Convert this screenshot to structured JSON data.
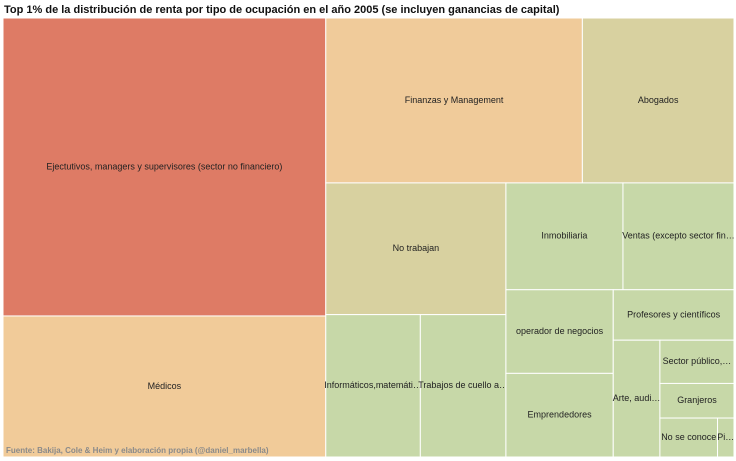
{
  "chart_data": {
    "type": "treemap",
    "title": "Top 1% de la distribución de renta por tipo de ocupación en el año 2005 (se incluyen ganancias de capital)",
    "source": "Fuente: Bakija, Cole & Heim y elaboración propia (@daniel_marbella)",
    "categories": [
      "Ejectutivos, managers y supervisores (sector no financiero)",
      "Médicos",
      "Finanzas y Management",
      "Abogados",
      "No trabajan",
      "Inmobiliaria",
      "Ventas (excepto sector fin…",
      "Informáticos,matemáti…",
      "Trabajos de cuello a…",
      "operador de negocios",
      "Emprendedores",
      "Profesores y científicos",
      "Arte, audi…",
      "Sector público,…",
      "Granjeros",
      "No se conoce",
      "Pi…"
    ],
    "values": [
      30.0,
      14.2,
      13.2,
      7.8,
      7.4,
      3.9,
      3.7,
      4.2,
      3.8,
      2.8,
      2.8,
      1.9,
      1.7,
      1.0,
      0.8,
      0.7,
      0.2
    ],
    "colors": [
      "#de7b65",
      "#f1cb99",
      "#f0cb9a",
      "#d8d1a0",
      "#d8d1a0",
      "#c7d8a8",
      "#c7d8a8",
      "#c7d8a8",
      "#c7d8a8",
      "#c7d8a8",
      "#c7d8a8",
      "#c7d8a8",
      "#c7d8a8",
      "#c7d8a8",
      "#c7d8a8",
      "#c7d8a8",
      "#c7d8a8"
    ]
  }
}
